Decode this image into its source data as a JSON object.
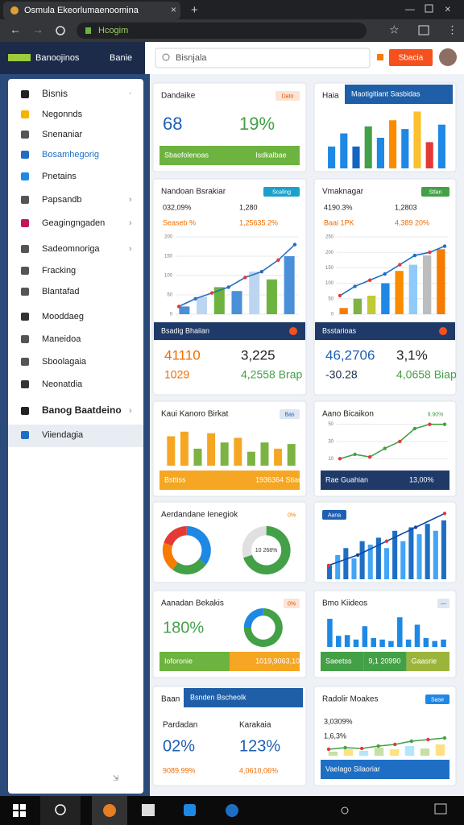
{
  "browser": {
    "tab_title": "Osmula Ekeorlumaenoomina",
    "url": "Hcogim"
  },
  "app": {
    "brand": "Banoojinos",
    "brand_sub": "Banie",
    "search": "Bisnjala",
    "button": "Sbacia"
  },
  "sidebar": {
    "items": [
      "Bisnis",
      "Negonnds",
      "Snenaniar",
      "Bosamhegorig",
      "Pnetains",
      "Papsandb",
      "Geagingngaden",
      "Sadeomnoriga",
      "Fracking",
      "Blantafad",
      "Mooddaeg",
      "Maneidoa",
      "Sboolagaia",
      "Neonatdia",
      "Banog Baatdeino",
      "Viiendagia"
    ]
  },
  "cards": [
    {
      "title": "Dandaike",
      "badge": "Dato",
      "stats": [
        "68",
        "19%"
      ],
      "footer": [
        "Sbaofolenoas",
        "Isdkalbae"
      ]
    },
    {
      "title": "Nandoan Bsrakiar",
      "badge": "Scaling",
      "stats": [
        "032,09%",
        "1,280",
        "Seaseb %",
        "1,25635 2%"
      ],
      "chart": {
        "type": "combo",
        "ylim": [
          0,
          200
        ],
        "yticks": [
          0,
          50,
          100,
          150,
          200
        ],
        "bars": [
          20,
          45,
          70,
          60,
          110,
          90,
          150
        ],
        "line": [
          20,
          40,
          55,
          70,
          95,
          110,
          140,
          180
        ],
        "colors": [
          "#4a90d9",
          "#bcd6f2",
          "#6db33f"
        ],
        "line_color": "#2a6ebb"
      },
      "panel": {
        "title": "Bsadig Bhaiian",
        "stats": [
          "41110",
          "3,225",
          "1029",
          "4,2558 Brap"
        ]
      }
    },
    {
      "title": "Kaui Kanoro Birkat",
      "badge": "Bas",
      "chart": {
        "type": "bar",
        "ylim": [
          0,
          50
        ],
        "values": [
          38,
          44,
          22,
          42,
          30,
          36,
          18,
          30,
          22,
          28
        ],
        "colors": [
          "#f5a623",
          "#f5a623",
          "#7cb342",
          "#f5a623",
          "#7cb342",
          "#f5a623",
          "#7cb342",
          "#7cb342",
          "#f5a623",
          "#7cb342"
        ]
      },
      "footer": [
        "Bsttiss",
        "1936364 Stian"
      ]
    },
    {
      "title": "Aerdandane Ienegiok",
      "badge": "0%",
      "chart": {
        "type": "donut",
        "rings": [
          {
            "values": [
              35,
              25,
              20,
              20
            ],
            "colors": [
              "#1e88e5",
              "#43a047",
              "#f57c00",
              "#e53935"
            ]
          },
          {
            "values": [
              70,
              30
            ],
            "colors": [
              "#43a047",
              "#e0e0e0"
            ],
            "label": "10 268%"
          }
        ]
      }
    },
    {
      "title": "Aanadan Bekakis",
      "badge": "0%",
      "stats": [
        "180%"
      ],
      "chart": {
        "type": "donut",
        "rings": [
          {
            "values": [
              75,
              25
            ],
            "colors": [
              "#43a047",
              "#1e88e5"
            ]
          }
        ]
      },
      "footer": [
        "Ioforonie",
        "1019,9063,10"
      ]
    },
    {
      "title": "Baan",
      "header": "Bsnden Bscheolk",
      "stats": [
        "Pardadan",
        "Karakaia",
        "02%",
        "123%",
        "9089.99%",
        "4,0610,06%"
      ]
    },
    {
      "title": "Haia",
      "header": "Maotigitiant Sasbidas",
      "chart": {
        "type": "bar",
        "ylim": [
          0,
          70
        ],
        "values": [
          25,
          40,
          25,
          48,
          35,
          55,
          45,
          65,
          30,
          50
        ],
        "colors": [
          "#1e88e5",
          "#1e88e5",
          "#1565c0",
          "#43a047",
          "#1e88e5",
          "#fb8c00",
          "#1e88e5",
          "#fbc02d",
          "#e53935",
          "#1e88e5"
        ]
      }
    },
    {
      "title": "Vmaknagar",
      "badge": "Stlan",
      "stats": [
        "4190.3%",
        "1,2803",
        "Baai 1PK",
        "4,389 20%"
      ],
      "chart": {
        "type": "combo",
        "ylim": [
          0,
          250
        ],
        "yticks": [
          0,
          50,
          100,
          150,
          200,
          250
        ],
        "bars": [
          20,
          50,
          60,
          100,
          140,
          160,
          190,
          210
        ],
        "line": [
          60,
          90,
          110,
          130,
          160,
          190,
          200,
          220
        ],
        "colors": [
          "#f57c00",
          "#7cb342",
          "#c0ca33",
          "#1e88e5",
          "#fb8c00",
          "#90caf9",
          "#bdbdbd"
        ],
        "line_color": "#1e6fc4"
      },
      "panel": {
        "title": "Bsstarioas",
        "stats": [
          "46,2706",
          "3,1%",
          "-30.28",
          "4,0658 Biap"
        ]
      }
    },
    {
      "title": "Aano Bicaikon",
      "badge": "9.90%",
      "chart": {
        "type": "line",
        "ylim": [
          0,
          60
        ],
        "yticks": [
          10,
          30,
          50
        ],
        "line": [
          10,
          15,
          12,
          22,
          30,
          45,
          50,
          50
        ],
        "line_color": "#43a047"
      },
      "footer": [
        "Rae Guahian",
        "13,00%"
      ]
    },
    {
      "badge": "Aana",
      "chart": {
        "type": "combo",
        "ylim": [
          0,
          100
        ],
        "bars": [
          20,
          35,
          45,
          30,
          55,
          50,
          60,
          45,
          70,
          55,
          75,
          65,
          80,
          70,
          85
        ],
        "line": [
          20,
          35,
          55,
          75,
          95
        ],
        "colors": [
          "#1e6fc4",
          "#42a5f5"
        ],
        "line_color": "#0d47a1"
      }
    },
    {
      "title": "Bmo Kiideos",
      "badge": "—",
      "chart": {
        "type": "bar",
        "ylim": [
          0,
          50
        ],
        "values": [
          38,
          15,
          16,
          10,
          28,
          12,
          10,
          8,
          40,
          10,
          30,
          12,
          8,
          10
        ],
        "colors": [
          "#1e88e5"
        ]
      },
      "footer": [
        "Saeetss",
        "9,1 20990",
        "Gaasrie"
      ]
    },
    {
      "title": "Radolir Moakes",
      "badge": "Sase",
      "stats": [
        "3,0309%",
        "1,6,3%"
      ],
      "chart": {
        "type": "combo",
        "ylim": [
          0,
          30
        ],
        "bars": [
          5,
          8,
          6,
          10,
          8,
          12,
          9,
          14
        ],
        "line": [
          8,
          10,
          9,
          12,
          14,
          18,
          20,
          22
        ],
        "colors": [
          "#c5e1a5",
          "#ffe082",
          "#b3e5fc"
        ],
        "line_color": "#43a047"
      },
      "footer": [
        "Vaelago Silaoriar"
      ]
    }
  ]
}
